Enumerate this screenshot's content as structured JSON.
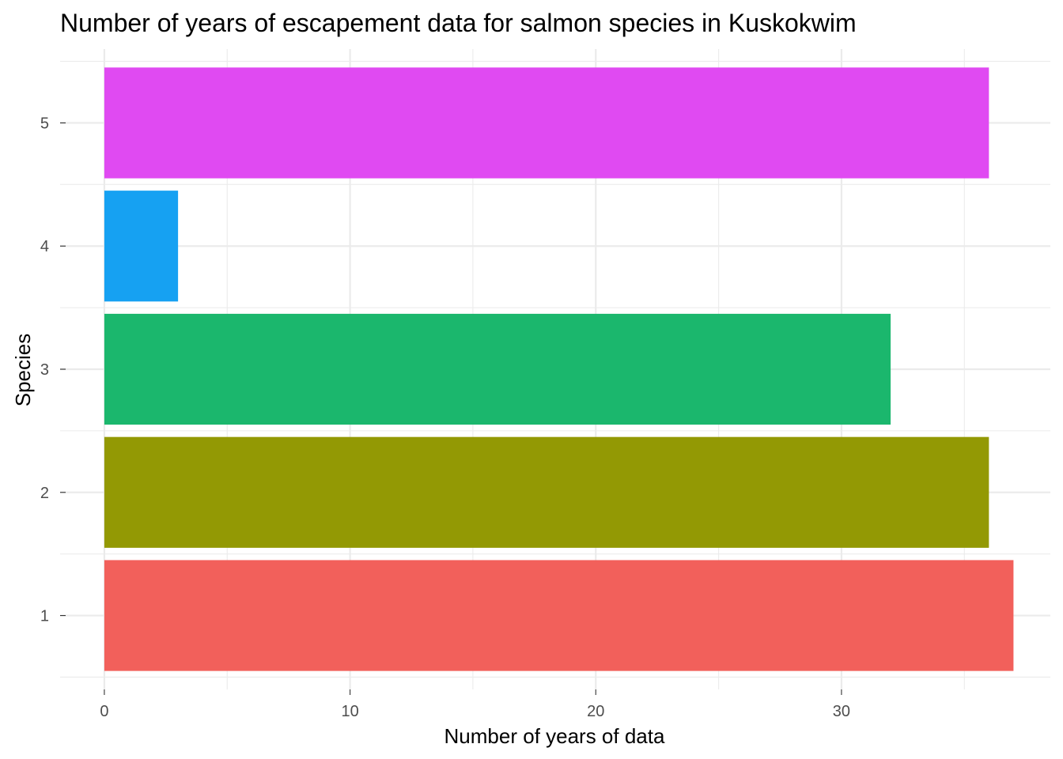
{
  "chart_data": {
    "type": "bar",
    "orientation": "horizontal",
    "title": "Number of years of escapement data for salmon species in Kuskokwim",
    "xlabel": "Number of years of data",
    "ylabel": "Species",
    "categories": [
      "1",
      "2",
      "3",
      "4",
      "5"
    ],
    "values": [
      37,
      36,
      32,
      3,
      36
    ],
    "colors": [
      "#F2605B",
      "#939904",
      "#1BB76D",
      "#16A1F2",
      "#E04AF2"
    ],
    "xlim": [
      -1.8,
      38.5
    ],
    "xticks": [
      0,
      10,
      20,
      30
    ],
    "xtick_labels": [
      "0",
      "10",
      "20",
      "30"
    ],
    "ytick_labels": [
      "1",
      "2",
      "3",
      "4",
      "5"
    ],
    "grid": true,
    "legend": "none"
  }
}
